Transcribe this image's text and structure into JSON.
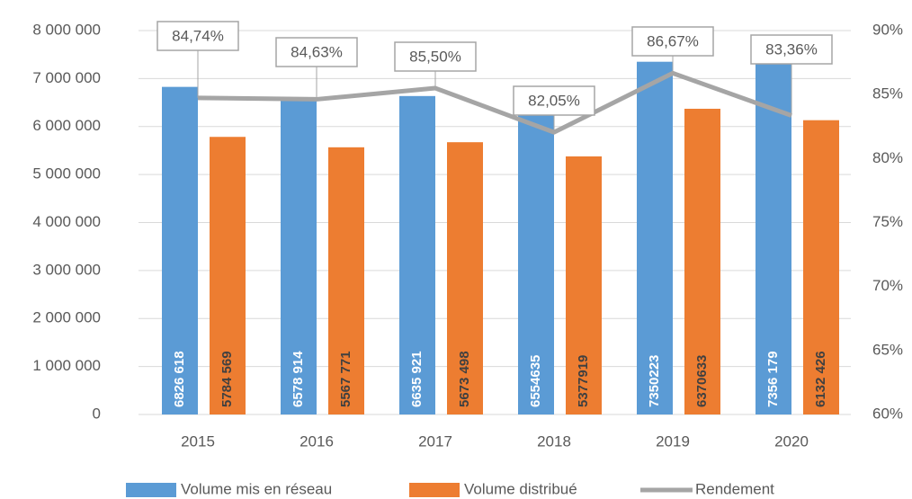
{
  "chart_data": {
    "type": "bar+line",
    "categories": [
      "2015",
      "2016",
      "2017",
      "2018",
      "2019",
      "2020"
    ],
    "series": [
      {
        "name": "Volume mis en réseau",
        "type": "bar",
        "color": "#5b9bd5",
        "values": [
          6826618,
          6578914,
          6635921,
          6554635,
          7350223,
          7356179
        ],
        "value_labels": [
          "6826 618",
          "6578 914",
          "6635 921",
          "6554635",
          "7350223",
          "7356 179"
        ]
      },
      {
        "name": "Volume distribué",
        "type": "bar",
        "color": "#ed7d31",
        "values": [
          5784569,
          5567771,
          5673498,
          5377919,
          6370633,
          6132426
        ],
        "value_labels": [
          "5784 569",
          "5567 771",
          "5673 498",
          "5377919",
          "6370633",
          "6132 426"
        ]
      },
      {
        "name": "Rendement",
        "type": "line",
        "color": "#a5a5a5",
        "axis": "y2",
        "values": [
          84.74,
          84.63,
          85.5,
          82.05,
          86.67,
          83.36
        ],
        "value_labels": [
          "84,74%",
          "84,63%",
          "85,50%",
          "82,05%",
          "86,67%",
          "83,36%"
        ]
      }
    ],
    "ylim": [
      0,
      8000000
    ],
    "yticks": [
      0,
      {
        "value": 1000000,
        "label": "1 000 000"
      },
      {
        "value": 2000000,
        "label": "2 000 000"
      },
      {
        "value": 3000000,
        "label": "3 000 000"
      },
      {
        "value": 4000000,
        "label": "4 000 000"
      },
      {
        "value": 5000000,
        "label": "5 000 000"
      },
      {
        "value": 6000000,
        "label": "6 000 000"
      },
      {
        "value": 7000000,
        "label": "7 000 000"
      },
      {
        "value": 8000000,
        "label": "8 000 000"
      }
    ],
    "y2lim": [
      60,
      90
    ],
    "y2ticks": [
      {
        "value": 60,
        "label": "60%"
      },
      {
        "value": 65,
        "label": "65%"
      },
      {
        "value": 70,
        "label": "70%"
      },
      {
        "value": 75,
        "label": "75%"
      },
      {
        "value": 80,
        "label": "80%"
      },
      {
        "value": 85,
        "label": "85%"
      },
      {
        "value": 90,
        "label": "90%"
      }
    ],
    "grid": true,
    "legend": "bottom"
  }
}
